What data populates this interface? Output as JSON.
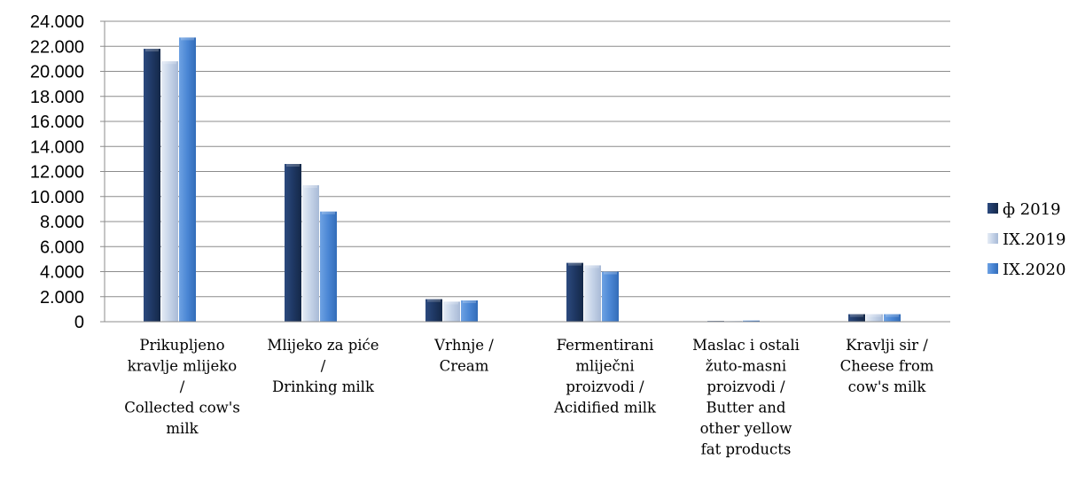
{
  "chart_data": {
    "type": "bar",
    "categories": [
      [
        "Prikupljeno",
        "kravlje mlijeko",
        "/",
        "Collected cow's",
        "milk"
      ],
      [
        "Mlijeko za piće",
        "/",
        "Drinking milk"
      ],
      [
        "Vrhnje /",
        "Cream"
      ],
      [
        "Fermentirani",
        "mliječni",
        "proizvodi /",
        "Acidified milk"
      ],
      [
        "Maslac i ostali",
        "žuto-masni",
        "proizvodi /",
        "Butter and",
        "other yellow",
        "fat products"
      ],
      [
        "Kravlji sir /",
        "Cheese from",
        "cow's milk"
      ]
    ],
    "series": [
      {
        "name": "ф 2019",
        "color": "#1f3864",
        "values": [
          21800,
          12600,
          1800,
          4700,
          40,
          600
        ]
      },
      {
        "name": "IX.2019",
        "color": "#c5d3e8",
        "values": [
          20800,
          10900,
          1600,
          4500,
          30,
          600
        ]
      },
      {
        "name": "IX.2020",
        "color": "#4a86d4",
        "values": [
          22700,
          8800,
          1700,
          4000,
          90,
          600
        ]
      }
    ],
    "ylim": [
      0,
      24000
    ],
    "yticks": [
      0,
      2000,
      4000,
      6000,
      8000,
      10000,
      12000,
      14000,
      16000,
      18000,
      20000,
      22000,
      24000
    ],
    "ytick_labels": [
      "0",
      "2.000",
      "4.000",
      "6.000",
      "8.000",
      "10.000",
      "12.000",
      "14.000",
      "16.000",
      "18.000",
      "20.000",
      "22.000",
      "24.000"
    ],
    "grid": true,
    "legend_position": "right",
    "title": "",
    "xlabel": "",
    "ylabel": ""
  }
}
